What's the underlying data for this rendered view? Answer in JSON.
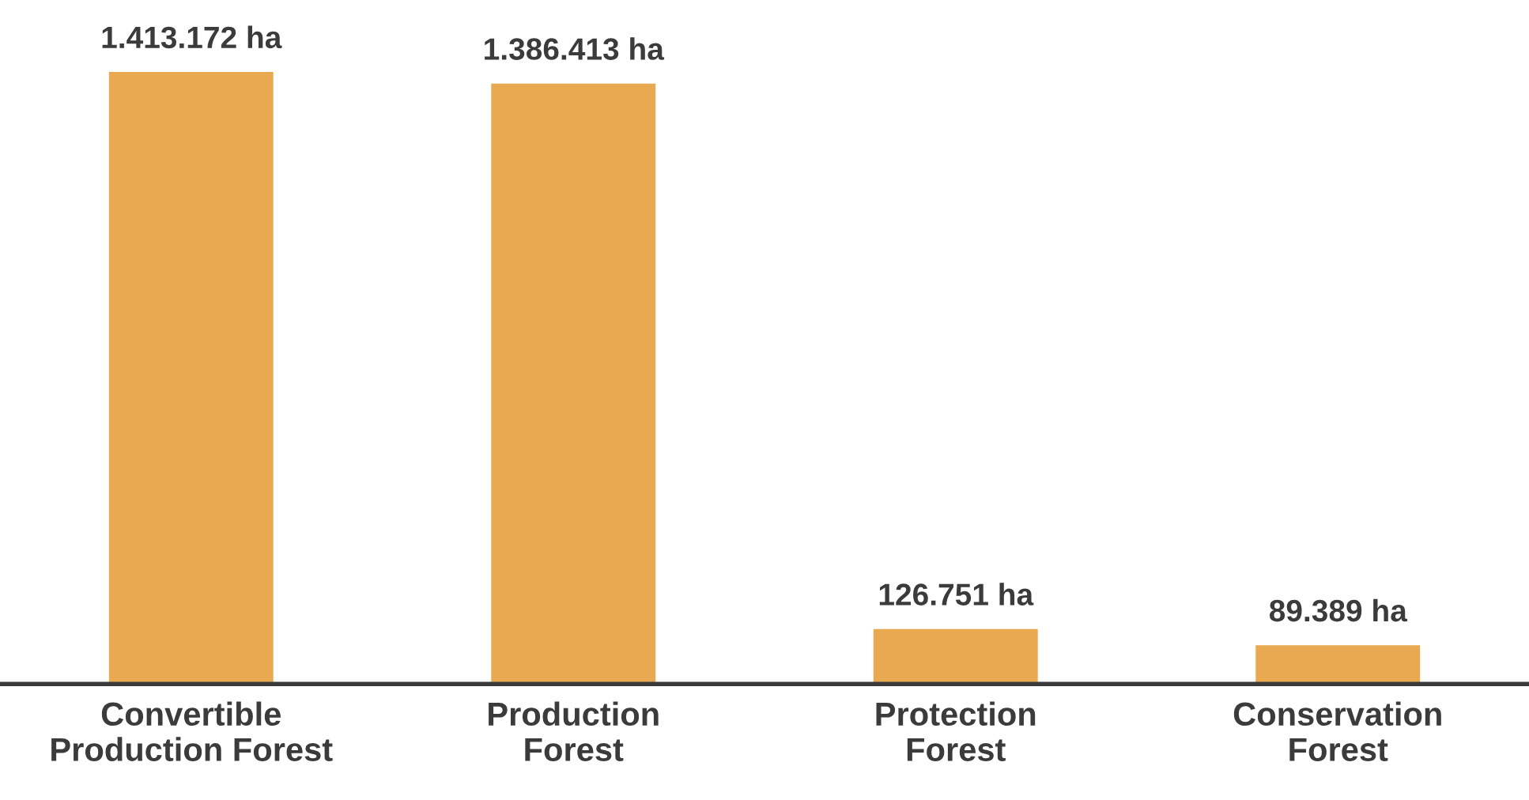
{
  "chart_data": {
    "type": "bar",
    "categories": [
      "Convertible\nProduction Forest",
      "Production\nForest",
      "Protection\nForest",
      "Conservation\nForest"
    ],
    "values": [
      1413172,
      1386413,
      126751,
      89389
    ],
    "value_labels": [
      "1.413.172 ha",
      "1.386.413 ha",
      "126.751 ha",
      "89.389 ha"
    ],
    "color": "#e8a951",
    "grid": false,
    "legend": false,
    "tick_labels": "x"
  }
}
